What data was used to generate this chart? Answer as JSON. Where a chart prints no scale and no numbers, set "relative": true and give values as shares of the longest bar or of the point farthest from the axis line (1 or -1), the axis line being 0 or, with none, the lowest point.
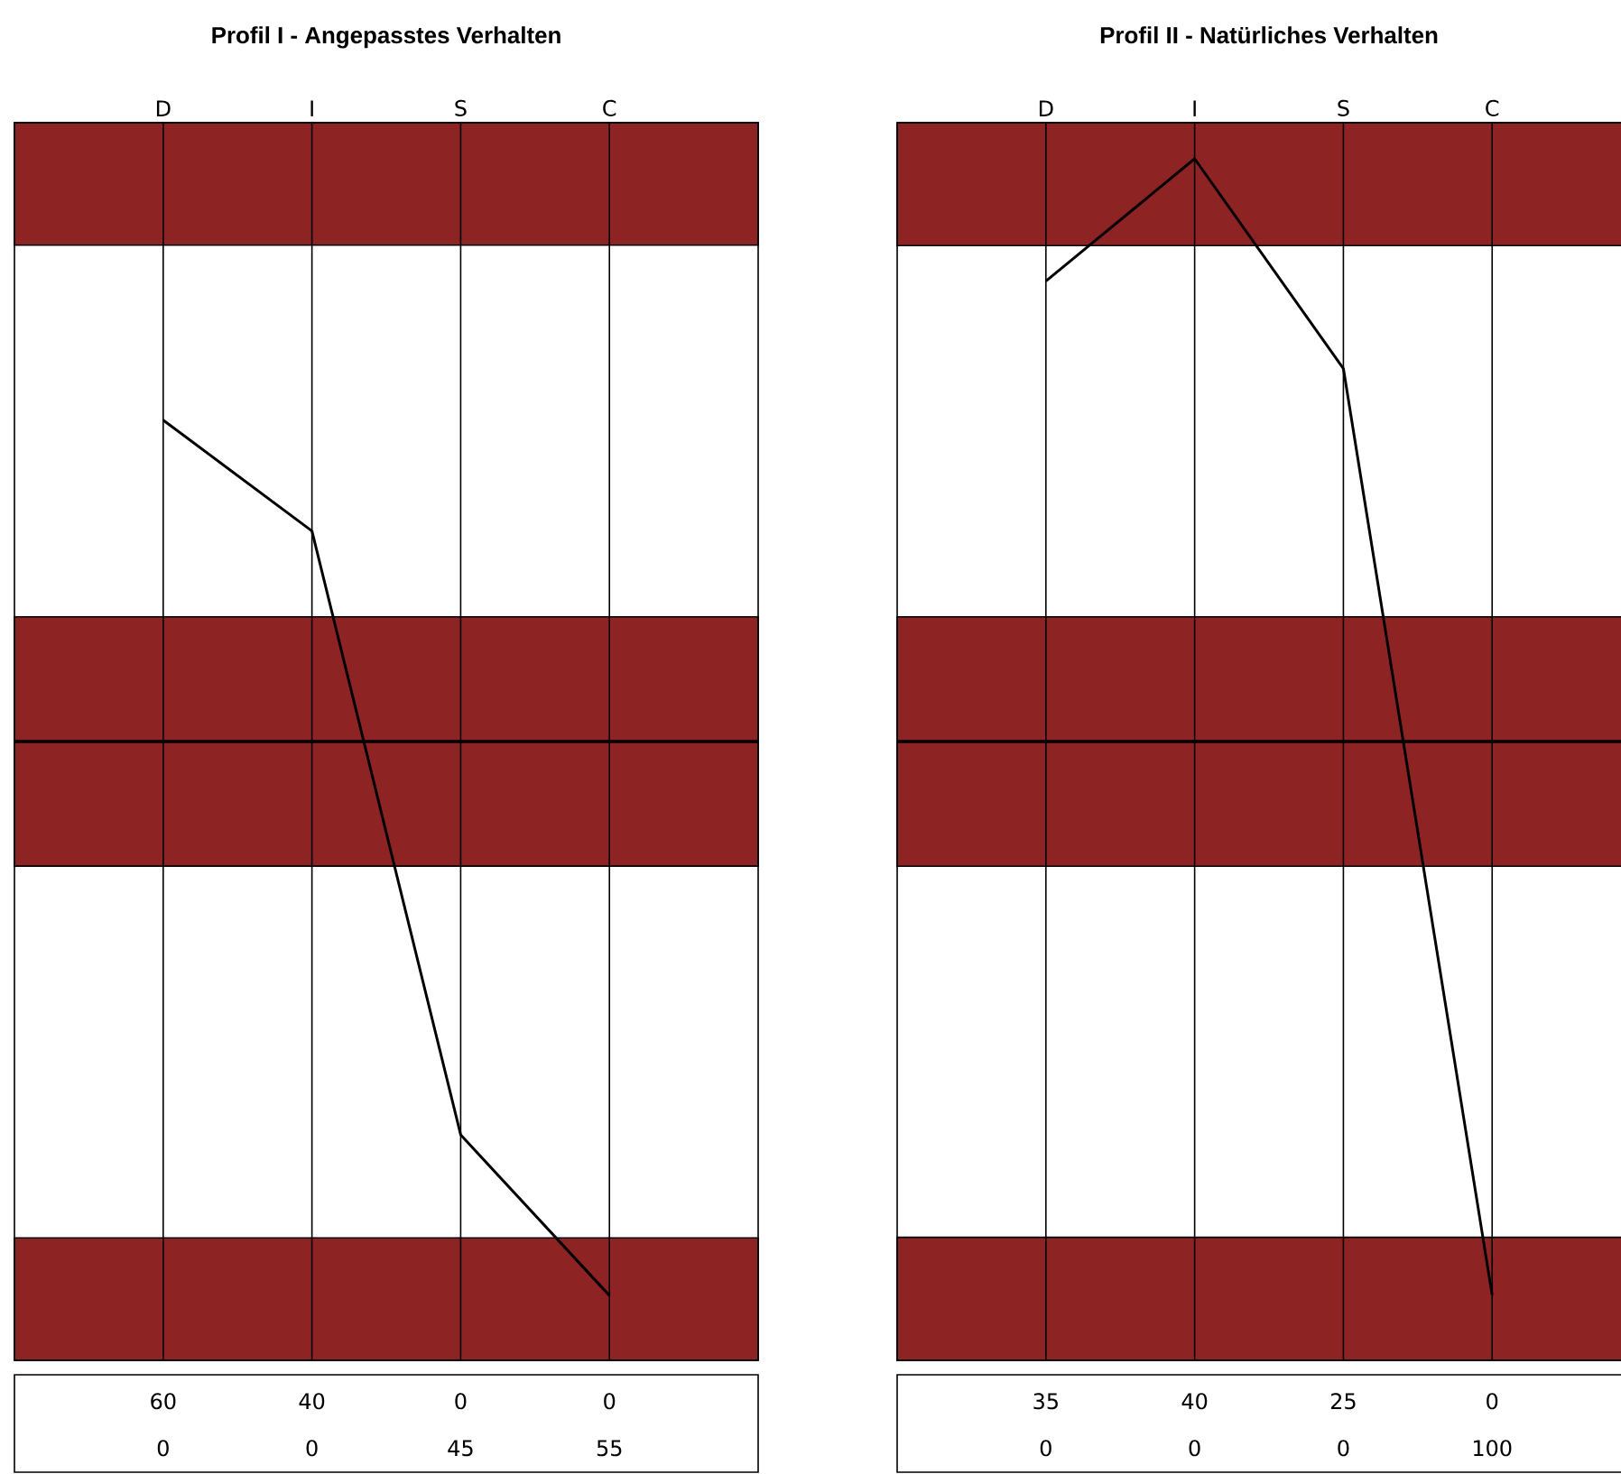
{
  "chart_data": [
    {
      "type": "line",
      "title": "Profil I - Angepasstes Verhalten",
      "categories": [
        "D",
        "I",
        "S",
        "C"
      ],
      "relative": true,
      "series": [
        {
          "color": "#000000",
          "values": [
            0.58,
            0.38,
            -0.71,
            -1
          ]
        }
      ],
      "bands": [
        {
          "axis": "y",
          "from": 0.896,
          "to": 1.117,
          "color": "#8e2323"
        },
        {
          "axis": "y",
          "from": -0.225,
          "to": 0.225,
          "color": "#8e2323"
        },
        {
          "axis": "y",
          "from": -1.117,
          "to": -0.896,
          "color": "#8e2323"
        }
      ],
      "ref_lines": [
        {
          "axis": "y",
          "value": 0
        }
      ],
      "grid": "x",
      "marker": "none",
      "line_style": "solid",
      "annotations": [
        "60",
        "40",
        "0",
        "0",
        "0",
        "0",
        "45",
        "55"
      ]
    },
    {
      "type": "line",
      "title": "Profil II - Natürliches Verhalten",
      "categories": [
        "D",
        "I",
        "S",
        "C"
      ],
      "relative": true,
      "series": [
        {
          "color": "#000000",
          "values": [
            0.79,
            1,
            0.64,
            -0.95
          ]
        }
      ],
      "bands": [
        {
          "axis": "y",
          "from": 0.851,
          "to": 1.062,
          "color": "#8e2323"
        },
        {
          "axis": "y",
          "from": -0.214,
          "to": 0.214,
          "color": "#8e2323"
        },
        {
          "axis": "y",
          "from": -1.062,
          "to": -0.851,
          "color": "#8e2323"
        }
      ],
      "ref_lines": [
        {
          "axis": "y",
          "value": 0
        }
      ],
      "grid": "x",
      "marker": "none",
      "line_style": "solid",
      "annotations": [
        "35",
        "40",
        "25",
        "0",
        "0",
        "0",
        "0",
        "100"
      ]
    }
  ]
}
